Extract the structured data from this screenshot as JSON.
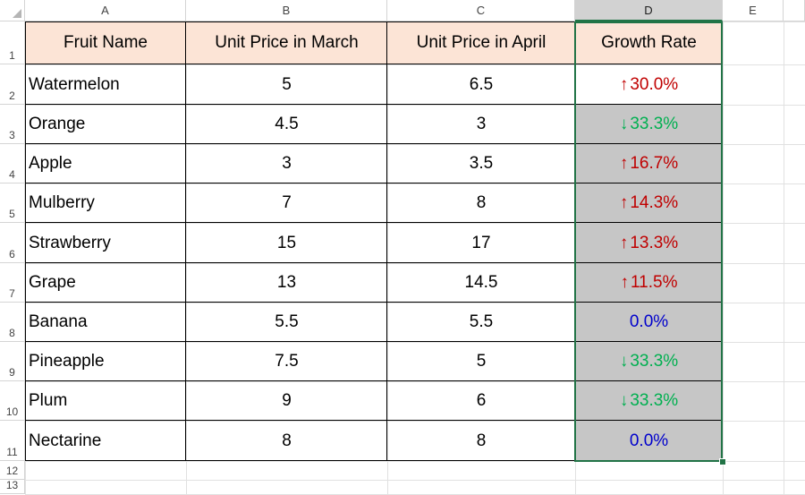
{
  "columns": [
    "A",
    "B",
    "C",
    "D",
    "E"
  ],
  "active_column": "D",
  "rows": [
    "1",
    "2",
    "3",
    "4",
    "5",
    "6",
    "7",
    "8",
    "9",
    "10",
    "11",
    "12",
    "13"
  ],
  "headers": [
    "Fruit Name",
    "Unit Price in March",
    "Unit Price in April",
    "Growth Rate"
  ],
  "table": [
    {
      "fruit": "Watermelon",
      "march": "5",
      "april": "6.5",
      "rate": "30.0%",
      "dir": "up"
    },
    {
      "fruit": "Orange",
      "march": "4.5",
      "april": "3",
      "rate": "33.3%",
      "dir": "down"
    },
    {
      "fruit": "Apple",
      "march": "3",
      "april": "3.5",
      "rate": "16.7%",
      "dir": "up"
    },
    {
      "fruit": "Mulberry",
      "march": "7",
      "april": "8",
      "rate": "14.3%",
      "dir": "up"
    },
    {
      "fruit": "Strawberry",
      "march": "15",
      "april": "17",
      "rate": "13.3%",
      "dir": "up"
    },
    {
      "fruit": "Grape",
      "march": "13",
      "april": "14.5",
      "rate": "11.5%",
      "dir": "up"
    },
    {
      "fruit": "Banana",
      "march": "5.5",
      "april": "5.5",
      "rate": "0.0%",
      "dir": "none"
    },
    {
      "fruit": "Pineapple",
      "march": "7.5",
      "april": "5",
      "rate": "33.3%",
      "dir": "down"
    },
    {
      "fruit": "Plum",
      "march": "9",
      "april": "6",
      "rate": "33.3%",
      "dir": "down"
    },
    {
      "fruit": "Nectarine",
      "march": "8",
      "april": "8",
      "rate": "0.0%",
      "dir": "none"
    }
  ],
  "colors": {
    "header_fill": "#fce4d6",
    "selection_fill": "#c6c6c6",
    "selection_border": "#217346",
    "up_color": "#c00000",
    "down_color": "#00b050",
    "none_color": "#0000cc"
  },
  "icons": {
    "up": "arrow-up-icon",
    "down": "arrow-down-icon"
  }
}
